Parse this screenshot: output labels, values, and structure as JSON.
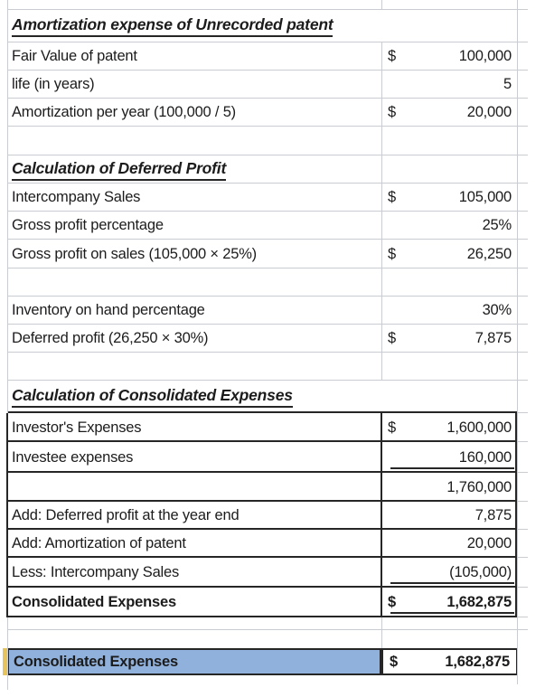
{
  "colors": {
    "highlight_fill": "#8FB1DC",
    "accent_yellow": "#E6C35C",
    "grid_line": "#c9cdd1",
    "border_dark": "#262626",
    "text": "#1c1c1c"
  },
  "sections": [
    {
      "title": "Amortization expense of Unrecorded patent"
    },
    {
      "title": "Calculation of Deferred Profit"
    },
    {
      "title": "Calculation of Consolidated Expenses"
    }
  ],
  "rows": [
    {
      "type": "spacer",
      "h": 11,
      "line": "light",
      "name": "row-spacer-top"
    },
    {
      "type": "heading",
      "h": 36,
      "line": "light",
      "text": "Amortization expense of Unrecorded patent",
      "name": "row-section1-heading"
    },
    {
      "type": "data",
      "h": 31,
      "line": "light",
      "label": "Fair Value of patent",
      "cur": "$",
      "val": "100,000",
      "name": "row-fair-value"
    },
    {
      "type": "data",
      "h": 31,
      "line": "light",
      "label": "life (in years)",
      "cur": "",
      "val": "5",
      "name": "row-life-years"
    },
    {
      "type": "data",
      "h": 31,
      "line": "light",
      "label": "Amortization per year (100,000 / 5)",
      "cur": "$",
      "val": "20,000",
      "name": "row-amortization-per-year"
    },
    {
      "type": "spacer",
      "h": 32,
      "line": "light",
      "name": "row-empty"
    },
    {
      "type": "heading",
      "h": 31,
      "line": "light",
      "text": "Calculation of Deferred Profit",
      "name": "row-section2-heading"
    },
    {
      "type": "data",
      "h": 31,
      "line": "light",
      "label": "Intercompany Sales",
      "cur": "$",
      "val": "105,000",
      "name": "row-intercompany-sales"
    },
    {
      "type": "data",
      "h": 31,
      "line": "light",
      "label": "Gross profit percentage",
      "cur": "",
      "val": "25%",
      "name": "row-gross-profit-percentage"
    },
    {
      "type": "data",
      "h": 32,
      "line": "light",
      "label": "Gross profit on sales (105,000 × 25%)",
      "cur": "$",
      "val": "26,250",
      "name": "row-gross-profit-on-sales"
    },
    {
      "type": "spacer",
      "h": 31,
      "line": "light",
      "name": "row-empty"
    },
    {
      "type": "data",
      "h": 31,
      "line": "light",
      "label": "Inventory on hand percentage",
      "cur": "",
      "val": "30%",
      "name": "row-inventory-percentage"
    },
    {
      "type": "data",
      "h": 31,
      "line": "light",
      "label": "Deferred profit (26,250 × 30%)",
      "cur": "$",
      "val": "7,875",
      "name": "row-deferred-profit"
    },
    {
      "type": "spacer",
      "h": 31,
      "line": "light",
      "name": "row-empty"
    },
    {
      "type": "heading",
      "h": 36,
      "line": "dark",
      "text": "Calculation of Consolidated Expenses",
      "name": "row-section3-heading"
    },
    {
      "type": "data",
      "h": 32,
      "line": "dark",
      "label": "Investor's Expenses",
      "cur": "$",
      "val": "1,600,000",
      "name": "row-investors-expenses"
    },
    {
      "type": "data",
      "h": 34,
      "line": "dark",
      "label": "Investee expenses",
      "cur": "",
      "val": "160,000",
      "underline": true,
      "name": "row-investee-expenses"
    },
    {
      "type": "data",
      "h": 32,
      "line": "dark",
      "label": "",
      "cur": "",
      "val": "1,760,000",
      "name": "row-expenses-subtotal"
    },
    {
      "type": "data",
      "h": 31,
      "line": "dark",
      "label": "Add: Deferred profit at the year end",
      "cur": "",
      "val": "7,875",
      "name": "row-add-deferred-profit"
    },
    {
      "type": "data",
      "h": 31,
      "line": "dark",
      "label": "Add: Amortization of patent",
      "cur": "",
      "val": "20,000",
      "name": "row-add-amortization"
    },
    {
      "type": "data",
      "h": 33,
      "line": "dark",
      "label": "Less: Intercompany Sales",
      "cur": "",
      "val": "(105,000)",
      "underline": true,
      "name": "row-less-intercompany-sales"
    },
    {
      "type": "data",
      "h": 33,
      "line": "dark",
      "label": "Consolidated Expenses",
      "cur": "$",
      "val": "1,682,875",
      "bold": true,
      "underline": true,
      "name": "row-consolidated-expenses-total"
    },
    {
      "type": "spacer",
      "h": 14,
      "line": "light",
      "name": "row-empty"
    },
    {
      "type": "spacer",
      "h": 20,
      "line": "none",
      "name": "row-empty"
    },
    {
      "type": "highlight",
      "h": 30,
      "line": "none",
      "label": "Consolidated Expenses",
      "cur": "$",
      "val": "1,682,875",
      "bold": true,
      "name": "row-consolidated-expenses-highlight"
    },
    {
      "type": "spacer",
      "h": 24,
      "line": "none",
      "name": "row-spacer-bottom"
    }
  ]
}
